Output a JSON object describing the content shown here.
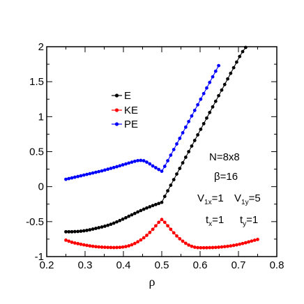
{
  "chart_data": {
    "type": "line",
    "xlabel": "ρ",
    "ylabel": "",
    "xlim": [
      0.2,
      0.8
    ],
    "ylim": [
      -1,
      2
    ],
    "x_ticks": [
      "0.2",
      "0.3",
      "0.4",
      "0.5",
      "0.6",
      "0.7",
      "0.8"
    ],
    "y_ticks": [
      "-1",
      "-0.5",
      "0",
      "0.5",
      "1",
      "1.5",
      "2"
    ],
    "grid": false,
    "legend_position": "upper-left",
    "series": [
      {
        "name": "E",
        "color": "#000000",
        "x": [
          0.25,
          0.2578,
          0.2656,
          0.2734,
          0.2813,
          0.2891,
          0.2969,
          0.3047,
          0.3125,
          0.3203,
          0.3281,
          0.3359,
          0.3438,
          0.3516,
          0.3594,
          0.3672,
          0.375,
          0.3828,
          0.3906,
          0.3984,
          0.4063,
          0.4141,
          0.4219,
          0.4297,
          0.4375,
          0.4453,
          0.4531,
          0.4609,
          0.4688,
          0.4766,
          0.4844,
          0.4922,
          0.5,
          0.5078,
          0.5156,
          0.5234,
          0.5313,
          0.5391,
          0.5469,
          0.5547,
          0.5625,
          0.5703,
          0.5781,
          0.5859,
          0.5938,
          0.6016,
          0.6094,
          0.6172,
          0.625,
          0.6328,
          0.6406,
          0.6484,
          0.6563,
          0.6641,
          0.6719,
          0.6797,
          0.6875,
          0.6953,
          0.7031,
          0.7109,
          0.7188
        ],
        "y": [
          -0.645,
          -0.645,
          -0.645,
          -0.643,
          -0.641,
          -0.637,
          -0.632,
          -0.625,
          -0.617,
          -0.607,
          -0.597,
          -0.587,
          -0.577,
          -0.566,
          -0.553,
          -0.538,
          -0.522,
          -0.504,
          -0.485,
          -0.465,
          -0.445,
          -0.424,
          -0.403,
          -0.383,
          -0.362,
          -0.342,
          -0.323,
          -0.305,
          -0.288,
          -0.271,
          -0.256,
          -0.241,
          -0.225,
          -0.14,
          -0.06,
          0.02,
          0.1,
          0.18,
          0.26,
          0.34,
          0.42,
          0.5,
          0.58,
          0.66,
          0.74,
          0.82,
          0.9,
          0.98,
          1.06,
          1.14,
          1.22,
          1.3,
          1.38,
          1.46,
          1.54,
          1.62,
          1.7,
          1.78,
          1.86,
          1.93,
          1.99
        ]
      },
      {
        "name": "KE",
        "color": "#ff0000",
        "x": [
          0.25,
          0.2578,
          0.2656,
          0.2734,
          0.2813,
          0.2891,
          0.2969,
          0.3047,
          0.3125,
          0.3203,
          0.3281,
          0.3359,
          0.3438,
          0.3516,
          0.3594,
          0.3672,
          0.375,
          0.3828,
          0.3906,
          0.3984,
          0.4063,
          0.4141,
          0.4219,
          0.4297,
          0.4375,
          0.4453,
          0.4531,
          0.4609,
          0.4688,
          0.4766,
          0.4844,
          0.4922,
          0.5,
          0.5078,
          0.5156,
          0.5234,
          0.5313,
          0.5391,
          0.5469,
          0.5547,
          0.5625,
          0.5703,
          0.5781,
          0.5859,
          0.5938,
          0.6016,
          0.6094,
          0.6172,
          0.625,
          0.6328,
          0.6406,
          0.6484,
          0.6563,
          0.6641,
          0.6719,
          0.6797,
          0.6875,
          0.6953,
          0.7031,
          0.7109,
          0.7188,
          0.7266,
          0.7344,
          0.7422,
          0.75
        ],
        "y": [
          -0.765,
          -0.78,
          -0.795,
          -0.806,
          -0.815,
          -0.824,
          -0.832,
          -0.84,
          -0.847,
          -0.853,
          -0.858,
          -0.862,
          -0.865,
          -0.867,
          -0.869,
          -0.87,
          -0.871,
          -0.87,
          -0.868,
          -0.864,
          -0.857,
          -0.846,
          -0.831,
          -0.812,
          -0.789,
          -0.762,
          -0.731,
          -0.696,
          -0.655,
          -0.61,
          -0.56,
          -0.51,
          -0.47,
          -0.51,
          -0.56,
          -0.61,
          -0.66,
          -0.705,
          -0.745,
          -0.78,
          -0.81,
          -0.835,
          -0.853,
          -0.866,
          -0.872,
          -0.874,
          -0.874,
          -0.873,
          -0.872,
          -0.871,
          -0.869,
          -0.866,
          -0.862,
          -0.858,
          -0.853,
          -0.847,
          -0.84,
          -0.832,
          -0.823,
          -0.813,
          -0.802,
          -0.79,
          -0.778,
          -0.766,
          -0.755
        ]
      },
      {
        "name": "PE",
        "color": "#0000ff",
        "x": [
          0.25,
          0.2578,
          0.2656,
          0.2734,
          0.2813,
          0.2891,
          0.2969,
          0.3047,
          0.3125,
          0.3203,
          0.3281,
          0.3359,
          0.3438,
          0.3516,
          0.3594,
          0.3672,
          0.375,
          0.3828,
          0.3906,
          0.3984,
          0.4063,
          0.4141,
          0.4219,
          0.4297,
          0.4375,
          0.4453,
          0.4531,
          0.4609,
          0.4688,
          0.4766,
          0.4844,
          0.4922,
          0.5,
          0.5078,
          0.5156,
          0.5234,
          0.5313,
          0.5391,
          0.5469,
          0.5547,
          0.5625,
          0.5703,
          0.5781,
          0.5859,
          0.5938,
          0.6016,
          0.6094,
          0.6172,
          0.625,
          0.6328,
          0.6406,
          0.6484
        ],
        "y": [
          0.105,
          0.115,
          0.125,
          0.135,
          0.145,
          0.155,
          0.165,
          0.175,
          0.185,
          0.195,
          0.205,
          0.215,
          0.225,
          0.237,
          0.249,
          0.261,
          0.273,
          0.285,
          0.298,
          0.311,
          0.324,
          0.337,
          0.35,
          0.362,
          0.372,
          0.375,
          0.37,
          0.35,
          0.325,
          0.295,
          0.27,
          0.245,
          0.22,
          0.29,
          0.37,
          0.45,
          0.53,
          0.61,
          0.69,
          0.77,
          0.85,
          0.93,
          1.01,
          1.09,
          1.17,
          1.25,
          1.33,
          1.41,
          1.49,
          1.57,
          1.65,
          1.73
        ]
      }
    ],
    "annotations": {
      "N": "N=8x8",
      "beta": "β=16",
      "v1x_main": "V",
      "v1x_sub": "1x",
      "v1x_val": "=1",
      "v1y_main": "V",
      "v1y_sub": "1y",
      "v1y_val": "=5",
      "tx_main": "t",
      "tx_sub": "x",
      "tx_val": "=1",
      "ty_main": "t",
      "ty_sub": "y",
      "ty_val": "=1"
    }
  }
}
